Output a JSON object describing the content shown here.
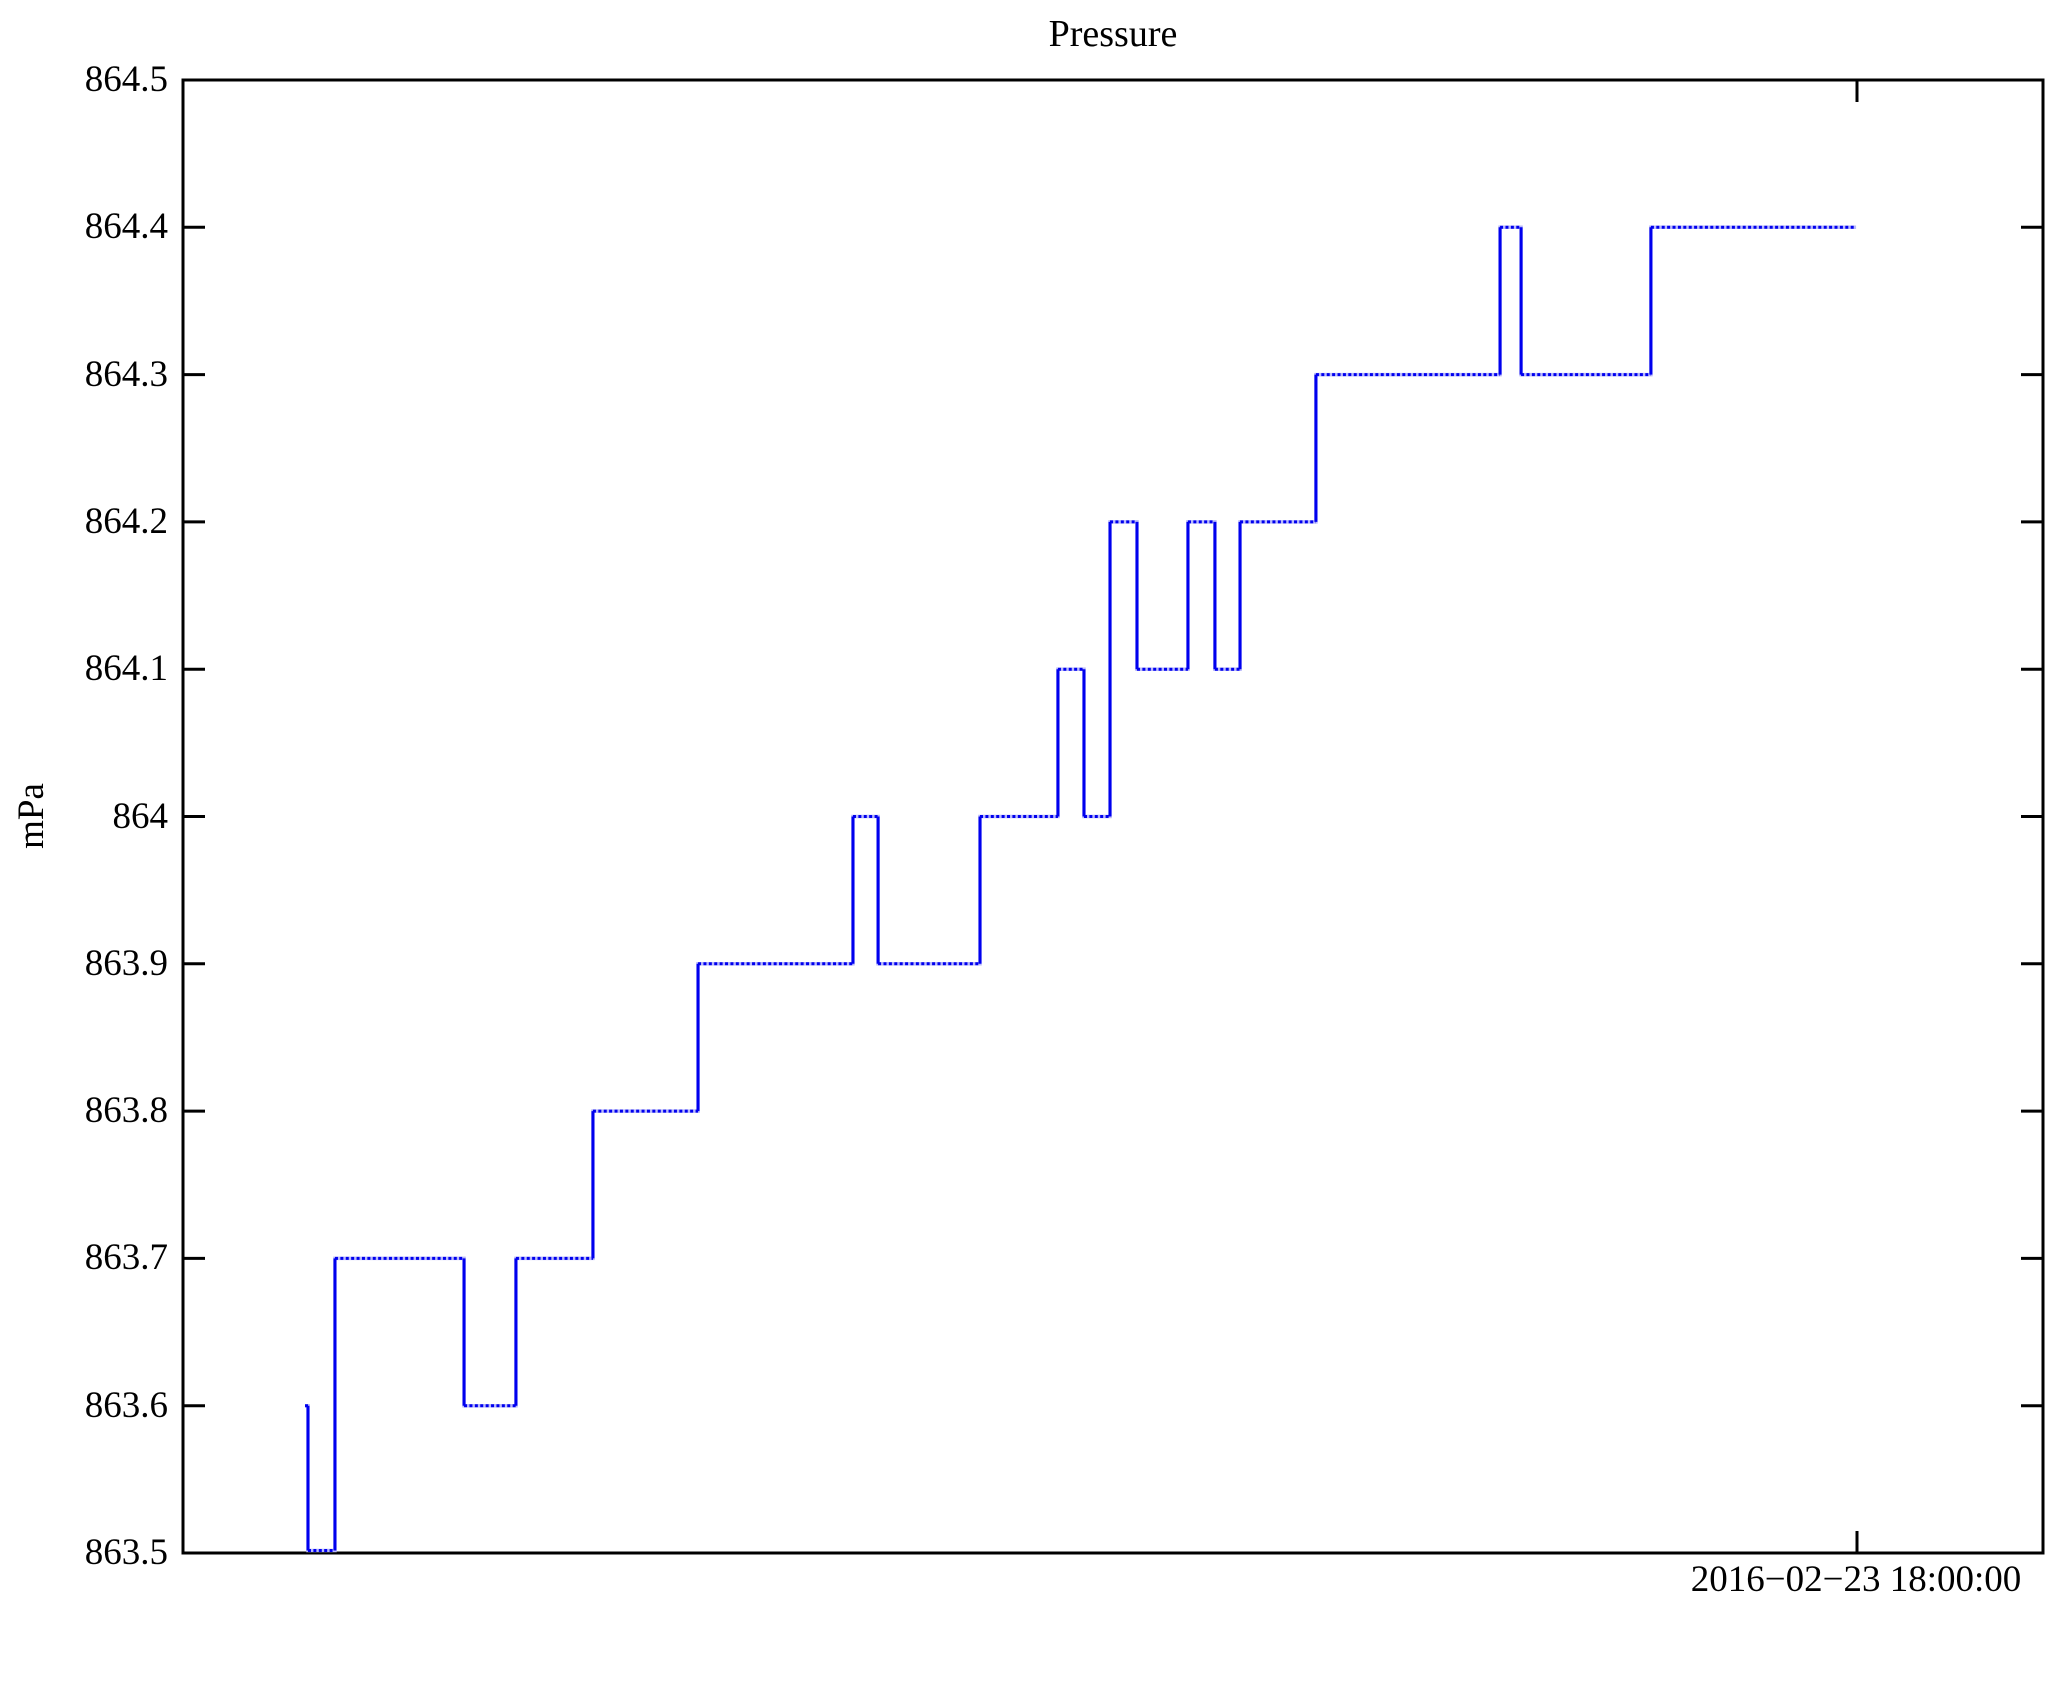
{
  "chart_data": {
    "type": "line",
    "line_style": "step",
    "title": "Pressure",
    "ylabel": "mPa",
    "xlabel": "",
    "ylim": [
      863.5,
      864.5
    ],
    "grid": false,
    "legend": null,
    "line_color": "#0000ee",
    "line_halo_color": "#b9b9fb",
    "axis_color": "#000000",
    "y_ticks": [
      {
        "label": "864.5",
        "value": 864.5
      },
      {
        "label": "864.4",
        "value": 864.4
      },
      {
        "label": "864.3",
        "value": 864.3
      },
      {
        "label": "864.2",
        "value": 864.2
      },
      {
        "label": "864.1",
        "value": 864.1
      },
      {
        "label": "864",
        "value": 864.0
      },
      {
        "label": "863.9",
        "value": 863.9
      },
      {
        "label": "863.8",
        "value": 863.8
      },
      {
        "label": "863.7",
        "value": 863.7
      },
      {
        "label": "863.6",
        "value": 863.6
      },
      {
        "label": "863.5",
        "value": 863.5
      }
    ],
    "x_tick": {
      "label": "2016−02−23 18:00:00",
      "position_frac": 0.9
    },
    "segments_note": "each segment = [x_start_frac, x_end_frac, pressure_mPa]; fractions of plot width, data ends at the 18:00:00 tick",
    "segments": [
      [
        0.0656,
        0.0672,
        863.6
      ],
      [
        0.0672,
        0.0817,
        863.5
      ],
      [
        0.0817,
        0.1511,
        863.7
      ],
      [
        0.1511,
        0.179,
        863.6
      ],
      [
        0.179,
        0.2204,
        863.7
      ],
      [
        0.2204,
        0.2769,
        863.8
      ],
      [
        0.2769,
        0.3602,
        863.9
      ],
      [
        0.3602,
        0.3737,
        864.0
      ],
      [
        0.3737,
        0.4285,
        863.9
      ],
      [
        0.4285,
        0.4704,
        864.0
      ],
      [
        0.4704,
        0.4844,
        864.1
      ],
      [
        0.4844,
        0.4984,
        864.0
      ],
      [
        0.4984,
        0.5129,
        864.2
      ],
      [
        0.5129,
        0.5403,
        864.1
      ],
      [
        0.5403,
        0.5548,
        864.2
      ],
      [
        0.5548,
        0.5683,
        864.1
      ],
      [
        0.5683,
        0.6091,
        864.2
      ],
      [
        0.6091,
        0.7081,
        864.3
      ],
      [
        0.7081,
        0.7194,
        864.4
      ],
      [
        0.7194,
        0.7892,
        864.3
      ],
      [
        0.7892,
        0.8995,
        864.4
      ]
    ]
  }
}
